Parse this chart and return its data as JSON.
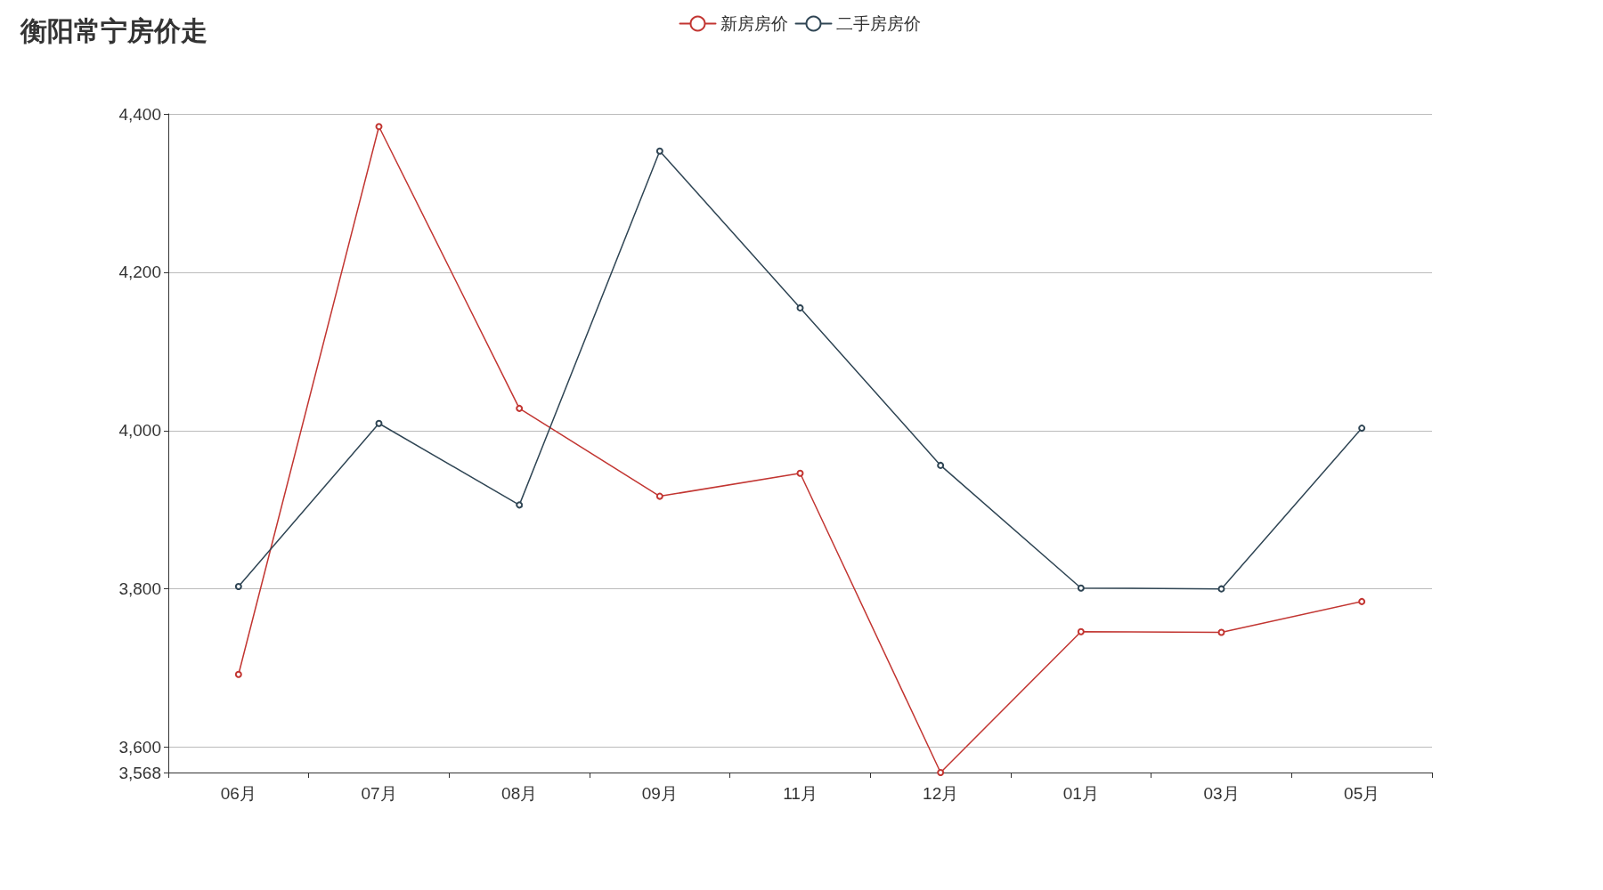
{
  "chart_data": {
    "type": "line",
    "title": "衡阳常宁房价走",
    "categories": [
      "06月",
      "07月",
      "08月",
      "09月",
      "11月",
      "12月",
      "01月",
      "03月",
      "05月"
    ],
    "series": [
      {
        "name": "新房房价",
        "color": "#c23531",
        "values": [
          3692,
          4384,
          4028,
          3917,
          3946,
          3568,
          3746,
          3745,
          3784
        ]
      },
      {
        "name": "二手房房价",
        "color": "#2f4554",
        "values": [
          3803,
          4009,
          3906,
          4353,
          4155,
          3956,
          3801,
          3800,
          4003
        ]
      }
    ],
    "ylim": [
      3568,
      4400
    ],
    "yticks": [
      {
        "value": 3568,
        "label": "3,568"
      },
      {
        "value": 3600,
        "label": "3,600"
      },
      {
        "value": 3800,
        "label": "3,800"
      },
      {
        "value": 4000,
        "label": "4,000"
      },
      {
        "value": 4200,
        "label": "4,200"
      },
      {
        "value": 4400,
        "label": "4,400"
      }
    ],
    "grid": "y",
    "legend": "top",
    "marker": "circle",
    "line_style": "solid"
  }
}
